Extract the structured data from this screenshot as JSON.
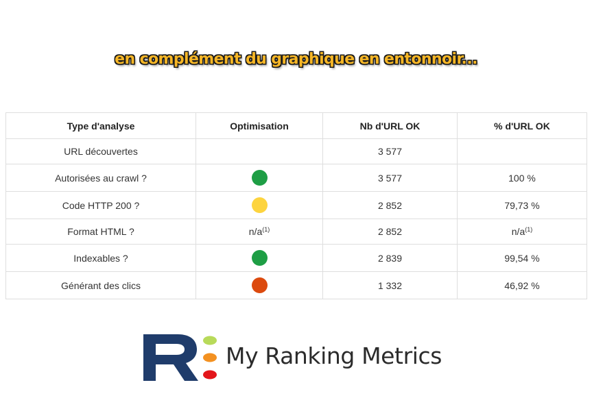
{
  "headline": "en complément du graphique en entonnoir...",
  "table": {
    "headers": [
      "Type d'analyse",
      "Optimisation",
      "Nb d'URL OK",
      "% d'URL OK"
    ],
    "rows": [
      {
        "type": "URL découvertes",
        "optimisation": "",
        "nb": "3 577",
        "pct": "",
        "pct_sup": ""
      },
      {
        "type": "Autorisées au crawl ?",
        "optimisation": "green",
        "nb": "3 577",
        "pct": "100 %",
        "pct_sup": ""
      },
      {
        "type": "Code HTTP 200 ?",
        "optimisation": "yellow",
        "nb": "2 852",
        "pct": "79,73 %",
        "pct_sup": ""
      },
      {
        "type": "Format HTML ?",
        "optimisation": "n/a",
        "optimisation_sup": "(1)",
        "nb": "2 852",
        "pct": "n/a",
        "pct_sup": "(1)"
      },
      {
        "type": "Indexables ?",
        "optimisation": "green",
        "nb": "2 839",
        "pct": "99,54 %",
        "pct_sup": ""
      },
      {
        "type": "Générant des clics",
        "optimisation": "red",
        "nb": "1 332",
        "pct": "46,92 %",
        "pct_sup": ""
      }
    ]
  },
  "status_colors": {
    "green": "#1e9e45",
    "yellow": "#fdd43f",
    "red": "#dc4a0e"
  },
  "logo": {
    "text": "My Ranking Metrics",
    "letter": "R",
    "colors": {
      "letter": "#1f3c6b",
      "dot_lime": "#b8da5a",
      "dot_orange": "#f39121",
      "dot_red": "#e3161b"
    }
  }
}
